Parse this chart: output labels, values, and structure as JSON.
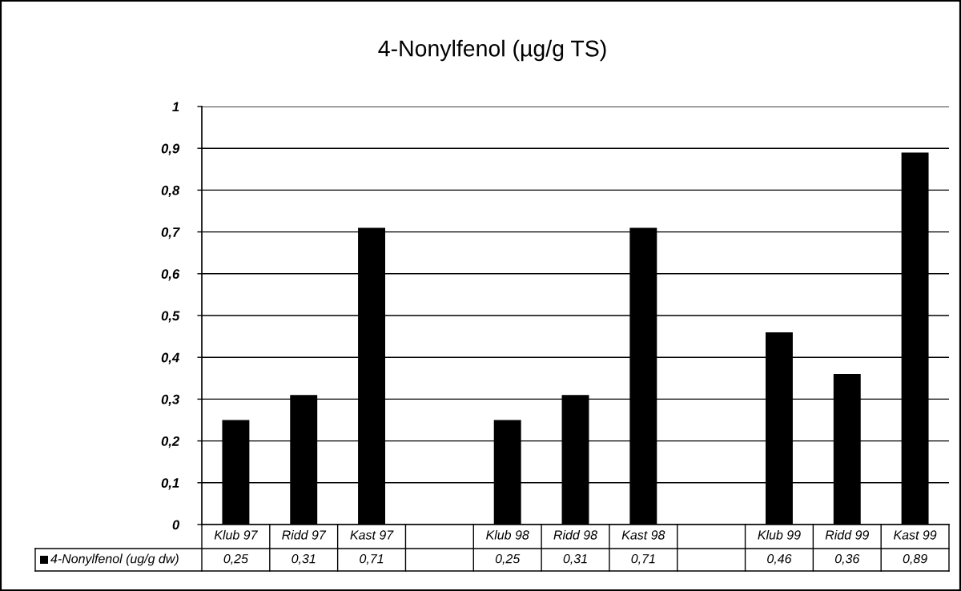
{
  "chart_data": {
    "type": "bar",
    "title": "4-Nonylfenol (µg/g TS)",
    "categories": [
      "Klub 97",
      "Ridd 97",
      "Kast 97",
      null,
      "Klub 98",
      "Ridd 98",
      "Kast 98",
      null,
      "Klub 99",
      "Ridd 99",
      "Kast 99"
    ],
    "series": [
      {
        "name": "4-Nonylfenol (ug/g dw)",
        "color": "#000000",
        "values": [
          0.25,
          0.31,
          0.71,
          null,
          0.25,
          0.31,
          0.71,
          null,
          0.46,
          0.36,
          0.89
        ],
        "value_labels": [
          "0,25",
          "0,31",
          "0,71",
          null,
          "0,25",
          "0,31",
          "0,71",
          null,
          "0,46",
          "0,36",
          "0,89"
        ]
      }
    ],
    "ylim": [
      0,
      1
    ],
    "yticks": [
      0,
      {
        "value": 0.1,
        "label": "0,1"
      },
      {
        "value": 0.2,
        "label": "0,2"
      },
      {
        "value": 0.3,
        "label": "0,3"
      },
      {
        "value": 0.4,
        "label": "0,4"
      },
      {
        "value": 0.5,
        "label": "0,5"
      },
      {
        "value": 0.6,
        "label": "0,6"
      },
      {
        "value": 0.7,
        "label": "0,7"
      },
      {
        "value": 0.8,
        "label": "0,8"
      },
      {
        "value": 0.9,
        "label": "0,9"
      },
      1
    ],
    "grid": "y",
    "legend": "bottom left"
  }
}
